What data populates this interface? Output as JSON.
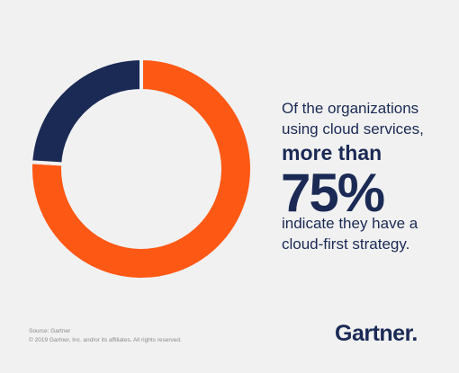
{
  "chart_data": {
    "type": "donut",
    "values": [
      76,
      24
    ],
    "colors": [
      "#fe5815",
      "#1b2a55"
    ],
    "headline": {
      "intro": [
        "Of the organizations",
        "using cloud services,"
      ],
      "emphasis": "more than",
      "figure": "75%",
      "outro": [
        "indicate they have a",
        "cloud-first strategy."
      ]
    },
    "source": "Source: Gartner",
    "copyright": "© 2019 Gartner, Inc. and/or its affiliates. All rights reserved.",
    "logo": "Gartner."
  }
}
